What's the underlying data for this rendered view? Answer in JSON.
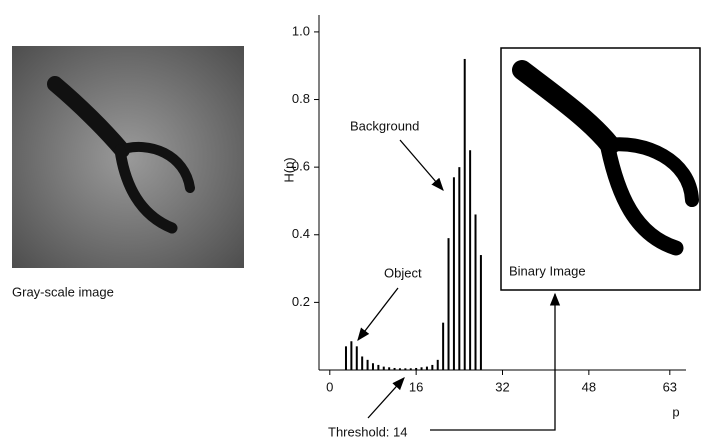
{
  "chart_data": {
    "type": "bar",
    "x_label": "p",
    "y_label": "H(p)",
    "x": [
      3,
      4,
      5,
      6,
      7,
      8,
      9,
      10,
      11,
      12,
      13,
      14,
      15,
      16,
      17,
      18,
      19,
      20,
      21,
      22,
      23,
      24,
      25,
      26,
      27,
      28
    ],
    "values": [
      0.07,
      0.085,
      0.07,
      0.04,
      0.03,
      0.02,
      0.015,
      0.01,
      0.008,
      0.006,
      0.005,
      0.005,
      0.005,
      0.006,
      0.008,
      0.01,
      0.015,
      0.03,
      0.14,
      0.39,
      0.57,
      0.6,
      0.92,
      0.65,
      0.46,
      0.34
    ],
    "color": "#000000",
    "xlim": [
      -2,
      66
    ],
    "ylim": [
      0,
      1.05
    ],
    "xticks": [
      0,
      16,
      32,
      48,
      63
    ],
    "yticks": [
      0.2,
      0.4,
      0.6,
      0.8,
      {
        "value": 1,
        "label": "1.0"
      }
    ],
    "grid": false,
    "annotations": [
      "Background",
      "Object",
      "Threshold: 14"
    ],
    "image_labels": [
      "Gray-scale image",
      "Binary Image"
    ]
  }
}
